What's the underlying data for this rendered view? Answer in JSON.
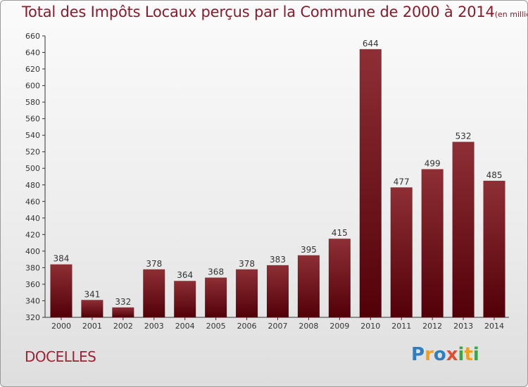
{
  "page": {
    "title": "Total des Impôts Locaux perçus par la Commune de 2000 à 2014",
    "unit": "(en milliers d'€)",
    "commune": "DOCELLES",
    "brand": {
      "letters": [
        "P",
        "r",
        "o",
        "x",
        "i",
        "t",
        "i"
      ]
    }
  },
  "chart_data": {
    "type": "bar",
    "title": "Total des Impôts Locaux perçus par la Commune de 2000 à 2014",
    "unit_label": "(en milliers d'€)",
    "xlabel": "",
    "ylabel": "",
    "categories": [
      "2000",
      "2001",
      "2002",
      "2003",
      "2004",
      "2005",
      "2006",
      "2007",
      "2008",
      "2009",
      "2010",
      "2011",
      "2012",
      "2013",
      "2014"
    ],
    "values": [
      384,
      341,
      332,
      378,
      364,
      368,
      378,
      383,
      395,
      415,
      644,
      477,
      499,
      532,
      485
    ],
    "ylim": [
      320,
      660
    ],
    "yticks": [
      320,
      340,
      360,
      380,
      400,
      420,
      440,
      460,
      480,
      500,
      520,
      540,
      560,
      580,
      600,
      620,
      640,
      660
    ],
    "grid": false,
    "colors": {
      "bar_top": "#8e2f35",
      "bar_bottom": "#520008",
      "text": "#333333"
    }
  }
}
